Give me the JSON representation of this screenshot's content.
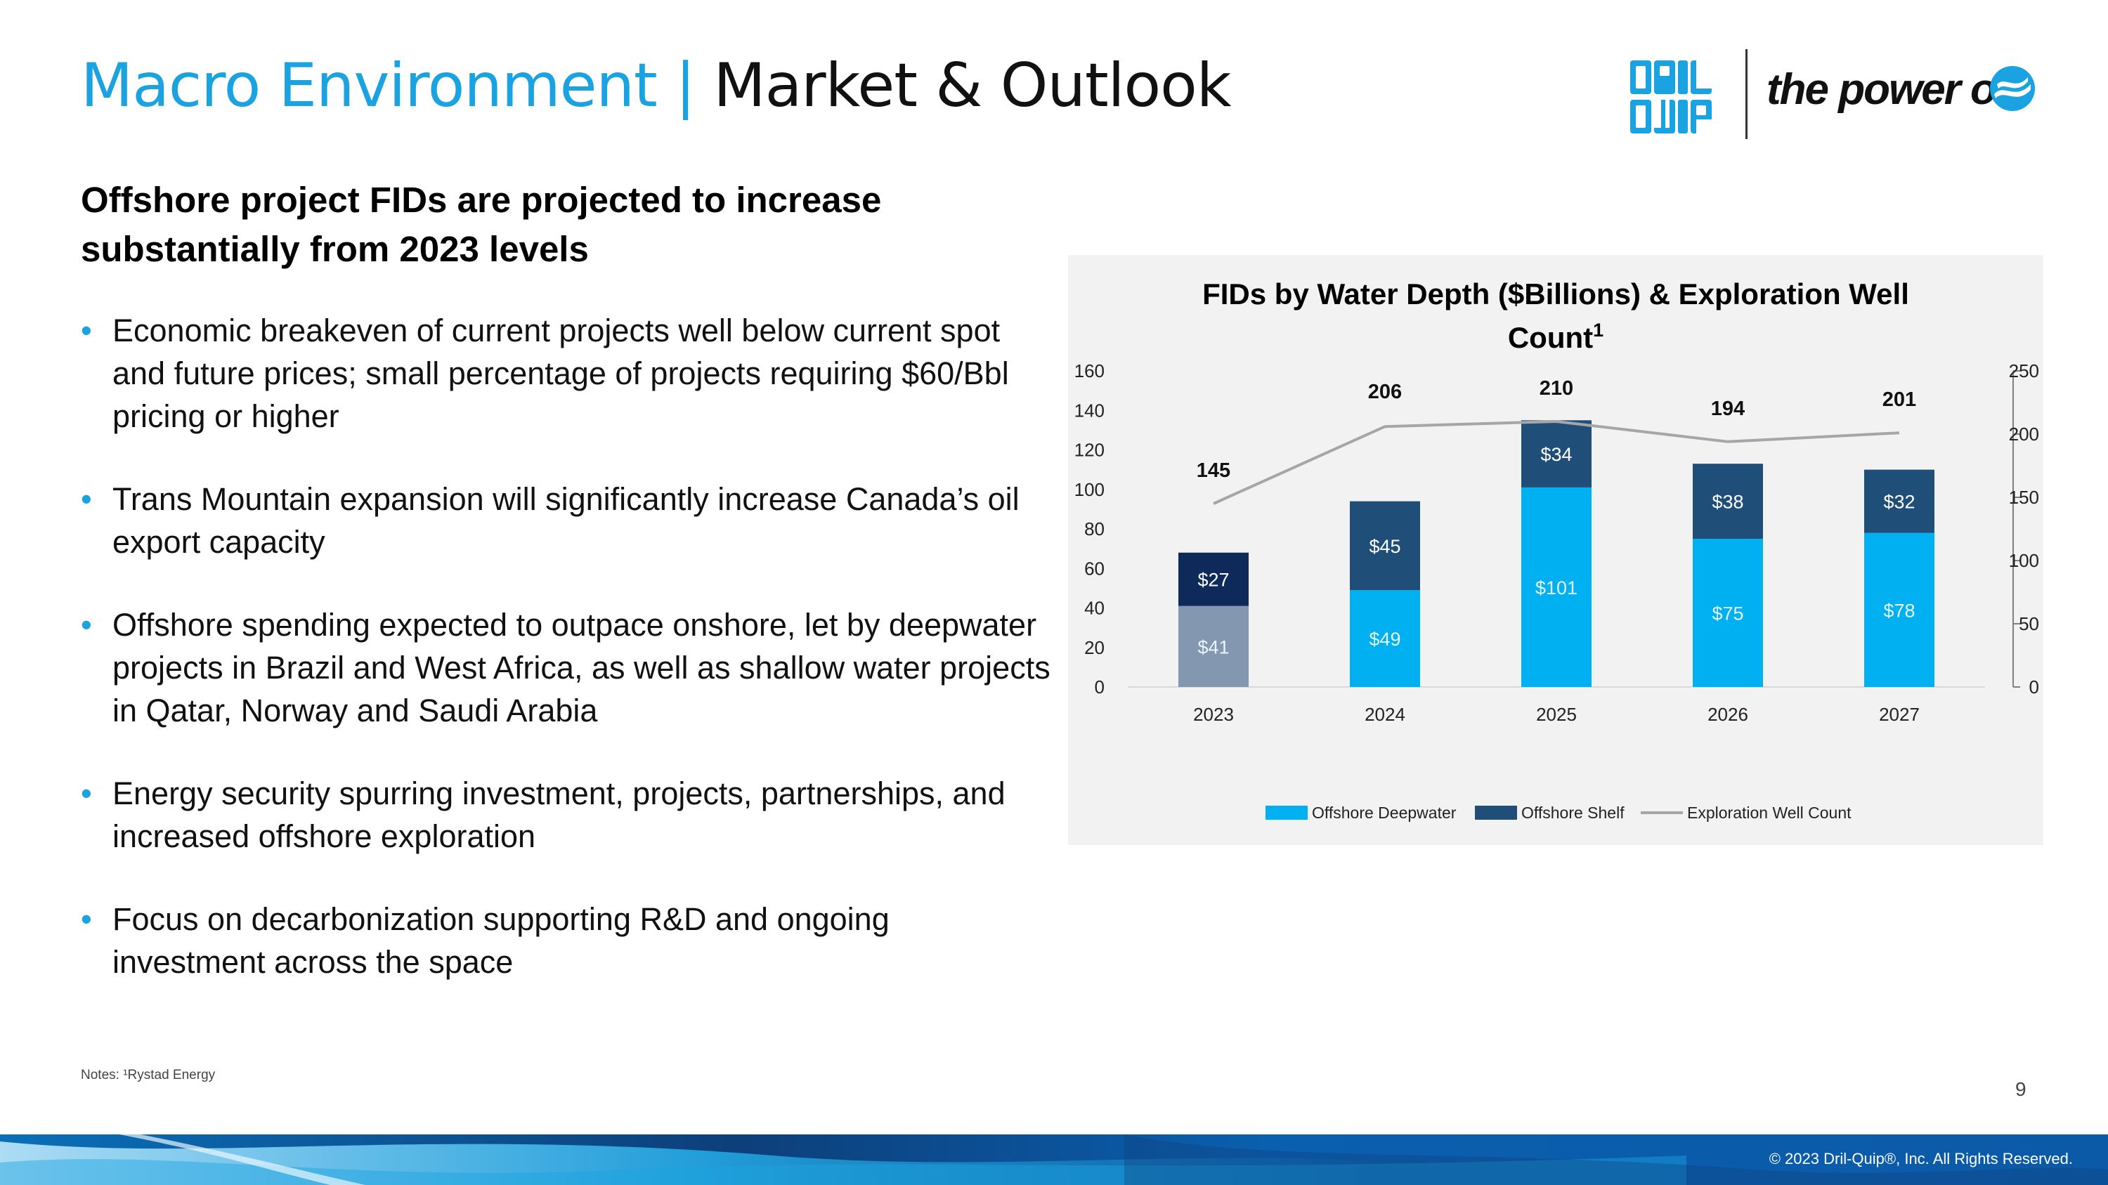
{
  "header": {
    "title_part1": "Macro Environment | ",
    "title_part2": "Market & Outlook",
    "logo_tagline": "the power of"
  },
  "subhead": "Offshore project FIDs are projected to increase substantially from 2023 levels",
  "bullets": [
    "Economic breakeven of current projects well below current spot and future prices; small percentage of projects requiring $60/Bbl pricing or higher",
    "Trans Mountain expansion will significantly increase Canada’s oil export capacity",
    "Offshore spending expected to outpace onshore, let by deepwater projects in Brazil and West Africa, as well as shallow water projects in Qatar, Norway and Saudi Arabia",
    "Energy security spurring investment, projects, partnerships, and increased offshore exploration",
    "Focus on decarbonization supporting R&D and ongoing investment across the space"
  ],
  "notes": "Notes: ¹Rystad Energy",
  "page_number": "9",
  "copyright": "© 2023 Dril-Quip®, Inc. All Rights Reserved.",
  "colors": {
    "accent": "#1aa3e0",
    "deepwater": "#00b0f0",
    "shelf": "#1f4e79",
    "line": "#a6a6a6",
    "chart_bg": "#f2f2f2"
  },
  "chart_data": {
    "type": "bar",
    "stacked": true,
    "title": "FIDs by Water Depth ($Billions) & Exploration Well Count",
    "title_superscript": "1",
    "categories": [
      "2023",
      "2024",
      "2025",
      "2026",
      "2027"
    ],
    "series": [
      {
        "name": "Offshore Deepwater",
        "type": "bar",
        "axis": "left",
        "values": [
          41,
          49,
          101,
          75,
          78
        ],
        "labels": [
          "$41",
          "$49",
          "$101",
          "$75",
          "$78"
        ]
      },
      {
        "name": "Offshore Shelf",
        "type": "bar",
        "axis": "left",
        "values": [
          27,
          45,
          34,
          38,
          32
        ],
        "labels": [
          "$27",
          "$45",
          "$34",
          "$38",
          "$32"
        ]
      },
      {
        "name": "Exploration Well Count",
        "type": "line",
        "axis": "right",
        "values": [
          145,
          206,
          210,
          194,
          201
        ],
        "labels": [
          "145",
          "206",
          "210",
          "194",
          "201"
        ]
      }
    ],
    "ylim_left": [
      0,
      160
    ],
    "yticks_left": [
      "0",
      "20",
      "40",
      "60",
      "80",
      "100",
      "120",
      "140",
      "160"
    ],
    "ylim_right": [
      0,
      250
    ],
    "yticks_right": [
      "0",
      "50",
      "100",
      "150",
      "200",
      "250"
    ],
    "grid": false,
    "legend": "bottom"
  }
}
